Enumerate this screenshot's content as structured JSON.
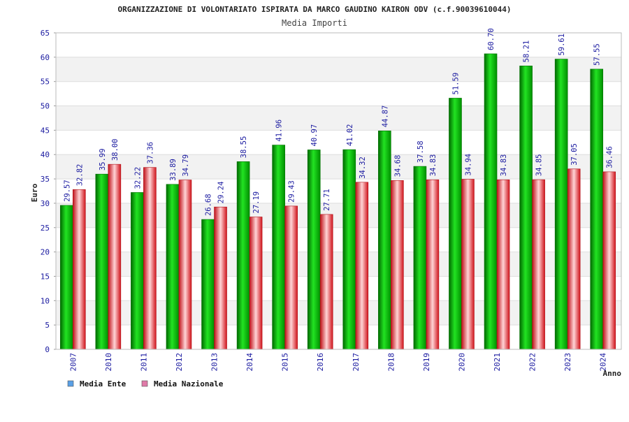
{
  "chart_data": {
    "type": "bar",
    "title": "ORGANIZZAZIONE DI VOLONTARIATO ISPIRATA DA MARCO GAUDINO KAIRON ODV (c.f.90039610044)",
    "subtitle": "Media Importi",
    "xlabel": "Anno",
    "ylabel": "Euro",
    "ylim": [
      0,
      65
    ],
    "yticks": [
      "0",
      "5",
      "10",
      "15",
      "20",
      "25",
      "30",
      "35",
      "40",
      "45",
      "50",
      "55",
      "60",
      "65"
    ],
    "categories": [
      "2007",
      "2010",
      "2011",
      "2012",
      "2013",
      "2014",
      "2015",
      "2016",
      "2017",
      "2018",
      "2019",
      "2020",
      "2021",
      "2022",
      "2023",
      "2024"
    ],
    "series": [
      {
        "name": "Media Ente",
        "values": [
          29.57,
          35.99,
          32.22,
          33.89,
          26.68,
          38.55,
          41.96,
          40.97,
          41.02,
          44.87,
          37.58,
          51.59,
          60.7,
          58.21,
          59.61,
          57.55
        ],
        "labels": [
          "29.57",
          "35.99",
          "32.22",
          "33.89",
          "26.68",
          "38.55",
          "41.96",
          "40.97",
          "41.02",
          "44.87",
          "37.58",
          "51.59",
          "60.70",
          "58.21",
          "59.61",
          "57.55"
        ],
        "color": "#00b800",
        "legend_color": "#5aa0e6"
      },
      {
        "name": "Media Nazionale",
        "values": [
          32.82,
          38.0,
          37.36,
          34.79,
          29.24,
          27.19,
          29.43,
          27.71,
          34.32,
          34.68,
          34.83,
          34.94,
          34.83,
          34.85,
          37.05,
          36.46
        ],
        "labels": [
          "32.82",
          "38.00",
          "37.36",
          "34.79",
          "29.24",
          "27.19",
          "29.43",
          "27.71",
          "34.32",
          "34.68",
          "34.83",
          "34.94",
          "34.83",
          "34.85",
          "37.05",
          "36.46"
        ],
        "color": "#e8262e",
        "legend_color": "#e07aa8"
      }
    ],
    "grid": true,
    "legend_position": "bottom-left"
  }
}
